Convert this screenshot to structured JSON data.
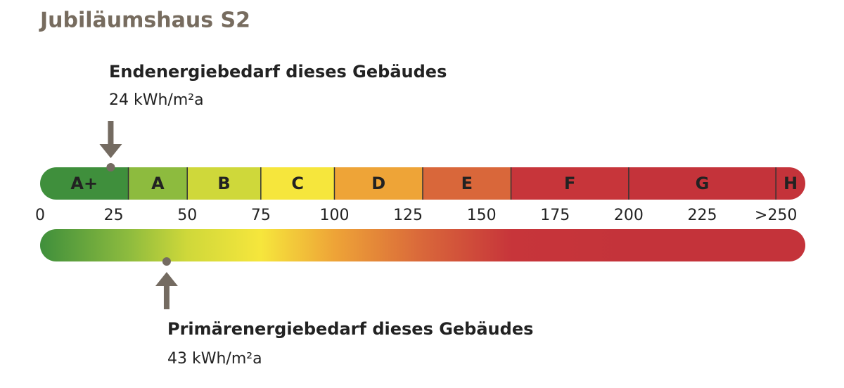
{
  "title": "Jubiläumshaus S2",
  "chart_data": {
    "type": "energy-scale",
    "xlim": [
      0,
      260
    ],
    "xticks": [
      0,
      25,
      50,
      75,
      100,
      125,
      150,
      175,
      200,
      225,
      {
        "value": 250,
        "label": ">250"
      }
    ],
    "categories": [
      "A+",
      "A",
      "B",
      "C",
      "D",
      "E",
      "F",
      "G",
      "H"
    ],
    "bounds": [
      0,
      30,
      50,
      75,
      100,
      130,
      160,
      200,
      250
    ],
    "colors": [
      "#3f8f3c",
      "#8dbb3e",
      "#cfd83a",
      "#f6e63c",
      "#eea437",
      "#d9673a",
      "#c7353a",
      "#c4333a",
      "#c4333a"
    ],
    "markers": [
      {
        "label": "Endenergiebedarf dieses Gebäudes",
        "value": 24,
        "value_label": "24 kWh/m²a",
        "position": "top"
      },
      {
        "label": "Primärenergiebedarf dieses Gebäudes",
        "value": 43,
        "value_label": "43 kWh/m²a",
        "position": "bottom"
      }
    ]
  }
}
